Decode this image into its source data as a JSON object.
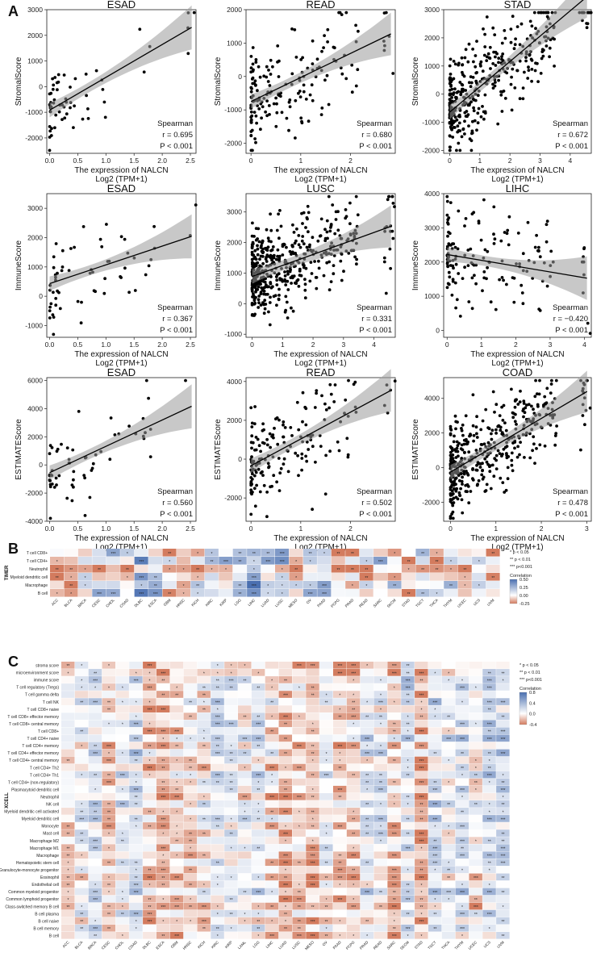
{
  "figure": {
    "panel_labels": [
      "A",
      "B",
      "C"
    ]
  },
  "chart_data": [
    {
      "type": "scatter",
      "title": "ESAD",
      "xlabel": "The expression of NALCN",
      "xlabel2": "Log2 (TPM+1)",
      "ylabel": "StromalScore",
      "xlim": [
        -0.05,
        2.6
      ],
      "ylim": [
        -2600,
        3000
      ],
      "xticks": [
        "0.0",
        "0.5",
        "1.0",
        "1.5",
        "2.0",
        "2.5"
      ],
      "xtick_values": [
        0,
        0.5,
        1,
        1.5,
        2,
        2.5
      ],
      "yticks": [
        "-2000",
        "-1000",
        "0",
        "1000",
        "2000",
        "3000"
      ],
      "ytick_values": [
        -2000,
        -1000,
        0,
        1000,
        2000,
        3000
      ],
      "stat_label": "Spearman",
      "r_text": "r = 0.695",
      "p_text": "P < 0.001",
      "fit": {
        "slope": 1280,
        "intercept": -920
      },
      "n_points": 60,
      "seed": 11
    },
    {
      "type": "scatter",
      "title": "READ",
      "xlabel": "The expression of NALCN",
      "xlabel2": "Log2 (TPM+1)",
      "ylabel": "StromalScore",
      "xlim": [
        -0.1,
        2.9
      ],
      "ylim": [
        -2300,
        2000
      ],
      "xticks": [
        "0",
        "1",
        "2"
      ],
      "xtick_values": [
        0,
        1,
        2
      ],
      "yticks": [
        "-2000",
        "-1000",
        "0",
        "1000",
        "2000"
      ],
      "ytick_values": [
        -2000,
        -1000,
        0,
        1000,
        2000
      ],
      "stat_label": "Spearman",
      "r_text": "r = 0.680",
      "p_text": "P < 0.001",
      "fit": {
        "slope": 720,
        "intercept": -750
      },
      "n_points": 170,
      "seed": 23
    },
    {
      "type": "scatter",
      "title": "STAD",
      "xlabel": "The expression of NALCN",
      "xlabel2": "Log2 (TPM+1)",
      "ylabel": "StromalScore",
      "xlim": [
        -0.2,
        4.7
      ],
      "ylim": [
        -2100,
        3000
      ],
      "xticks": [
        "0",
        "1",
        "2",
        "3",
        "4"
      ],
      "xtick_values": [
        0,
        1,
        2,
        3,
        4
      ],
      "yticks": [
        "-2000",
        "-1000",
        "0",
        "1000",
        "2000",
        "3000"
      ],
      "ytick_values": [
        -2000,
        -1000,
        0,
        1000,
        2000,
        3000
      ],
      "stat_label": "Spearman",
      "r_text": "r = 0.672",
      "p_text": "P < 0.001",
      "fit": {
        "slope": 900,
        "intercept": -640
      },
      "n_points": 380,
      "seed": 37
    },
    {
      "type": "scatter",
      "title": "ESAD",
      "xlabel": "The expression of NALCN",
      "xlabel2": "Log2 (TPM+1)",
      "ylabel": "ImmuneScore",
      "xlim": [
        -0.05,
        2.6
      ],
      "ylim": [
        -1400,
        3500
      ],
      "xticks": [
        "0.0",
        "0.5",
        "1.0",
        "1.5",
        "2.0",
        "2.5"
      ],
      "xtick_values": [
        0,
        0.5,
        1,
        1.5,
        2,
        2.5
      ],
      "yticks": [
        "-1000",
        "0",
        "1000",
        "2000",
        "3000"
      ],
      "ytick_values": [
        -1000,
        0,
        1000,
        2000,
        3000
      ],
      "stat_label": "Spearman",
      "r_text": "r = 0.367",
      "p_text": "P < 0.001",
      "fit": {
        "slope": 640,
        "intercept": 430
      },
      "n_points": 60,
      "seed": 41
    },
    {
      "type": "scatter",
      "title": "LUSC",
      "xlabel": "The expression of NALCN",
      "xlabel2": "Log2 (TPM+1)",
      "ylabel": "ImmuneScore",
      "xlim": [
        -0.2,
        4.7
      ],
      "ylim": [
        -1100,
        3600
      ],
      "xticks": [
        "0",
        "1",
        "2",
        "3",
        "4"
      ],
      "xtick_values": [
        0,
        1,
        2,
        3,
        4
      ],
      "yticks": [
        "-1000",
        "0",
        "1000",
        "2000",
        "3000"
      ],
      "ytick_values": [
        -1000,
        0,
        1000,
        2000,
        3000
      ],
      "stat_label": "Spearman",
      "r_text": "r = 0.331",
      "p_text": "P < 0.001",
      "fit": {
        "slope": 360,
        "intercept": 890
      },
      "n_points": 460,
      "seed": 53
    },
    {
      "type": "scatter",
      "title": "LIHC",
      "xlabel": "The expression of NALCN",
      "xlabel2": "Log2 (TPM+1)",
      "ylabel": "ImmuneScore",
      "xlim": [
        -0.1,
        4.2
      ],
      "ylim": [
        -200,
        4000
      ],
      "xticks": [
        "0",
        "1",
        "2",
        "3",
        "4"
      ],
      "xtick_values": [
        0,
        1,
        2,
        3,
        4
      ],
      "yticks": [
        "0",
        "1000",
        "2000",
        "3000",
        "4000"
      ],
      "ytick_values": [
        0,
        1000,
        2000,
        3000,
        4000
      ],
      "stat_label": "Spearman",
      "r_text": "r = −0.420",
      "p_text": "P < 0.001",
      "fit": {
        "slope": -170,
        "intercept": 2220
      },
      "n_points": 150,
      "seed": 67
    },
    {
      "type": "scatter",
      "title": "ESAD",
      "xlabel": "The expression of NALCN",
      "xlabel2": "Log2 (TPM+1)",
      "ylabel": "ESTIMATEScore",
      "xlim": [
        -0.05,
        2.6
      ],
      "ylim": [
        -4000,
        6200
      ],
      "xticks": [
        "0.0",
        "0.5",
        "1.0",
        "1.5",
        "2.0",
        "2.5"
      ],
      "xtick_values": [
        0,
        0.5,
        1,
        1.5,
        2,
        2.5
      ],
      "yticks": [
        "-4000",
        "-2000",
        "0",
        "2000",
        "4000",
        "6000"
      ],
      "ytick_values": [
        -4000,
        -2000,
        0,
        2000,
        4000,
        6000
      ],
      "stat_label": "Spearman",
      "r_text": "r = 0.560",
      "p_text": "P < 0.001",
      "fit": {
        "slope": 1870,
        "intercept": -550
      },
      "n_points": 60,
      "seed": 71
    },
    {
      "type": "scatter",
      "title": "READ",
      "xlabel": "The expression of NALCN",
      "xlabel2": "Log2 (TPM+1)",
      "ylabel": "ESTIMATEScore",
      "xlim": [
        -0.1,
        2.9
      ],
      "ylim": [
        -3200,
        4200
      ],
      "xticks": [
        "0",
        "1",
        "2"
      ],
      "xtick_values": [
        0,
        1,
        2
      ],
      "yticks": [
        "-2000",
        "0",
        "2000",
        "4000"
      ],
      "ytick_values": [
        -2000,
        0,
        2000,
        4000
      ],
      "stat_label": "Spearman",
      "r_text": "r = 0.502",
      "p_text": "P < 0.001",
      "fit": {
        "slope": 1380,
        "intercept": -340
      },
      "n_points": 170,
      "seed": 83
    },
    {
      "type": "scatter",
      "title": "COAD",
      "xlabel": "The expression of NALCN",
      "xlabel2": "Log2 (TPM+1)",
      "ylabel": "ESTIMATEScore",
      "xlim": [
        -0.15,
        3.1
      ],
      "ylim": [
        -3100,
        5200
      ],
      "xticks": [
        "0",
        "1",
        "2",
        "3"
      ],
      "xtick_values": [
        0,
        1,
        2,
        3
      ],
      "yticks": [
        "-2000",
        "0",
        "2000",
        "4000"
      ],
      "ytick_values": [
        -2000,
        0,
        2000,
        4000
      ],
      "stat_label": "Spearman",
      "r_text": "r = 0.478",
      "p_text": "P < 0.001",
      "fit": {
        "slope": 1550,
        "intercept": -260
      },
      "n_points": 420,
      "seed": 97
    },
    {
      "type": "heatmap",
      "group_label": "TIMER",
      "rows": [
        "T cell CD8+",
        "T cell CD4+",
        "Neutrophil",
        "Myeloid dendritic cell",
        "Macrophage",
        "B cell"
      ],
      "columns": [
        "ACC",
        "BLCA",
        "BRCA",
        "CESC",
        "CHOL",
        "COAD",
        "DLBC",
        "ESCA",
        "GBM",
        "HNSC",
        "KICH",
        "KIRC",
        "KIRP",
        "LGG",
        "LIHC",
        "LUAD",
        "LUSC",
        "MESO",
        "OV",
        "PAAD",
        "PCPG",
        "PRAD",
        "READ",
        "SARC",
        "SKCM",
        "STAD",
        "TGCT",
        "THCA",
        "THYM",
        "UCEC",
        "UCS",
        "UVM"
      ],
      "value_range": [
        -0.25,
        0.5
      ],
      "seed": 131,
      "legend": {
        "stars": [
          "* p < 0.05",
          "** p < 0.01",
          "*** p<0.001"
        ],
        "title": "Correlation",
        "ticks": [
          "0.50",
          "0.25",
          "0.00",
          "-0.25"
        ],
        "tick_values": [
          0.5,
          0.25,
          0,
          -0.25
        ]
      }
    },
    {
      "type": "heatmap",
      "group_label": "XCELL",
      "rows": [
        "stroma score",
        "microenvironment score",
        "immune score",
        "T cell regulatory (Tregs)",
        "T cell gamma delta",
        "T cell NK",
        "T cell CD8+ naive",
        "T cell CD8+ effector memory",
        "T cell CD8+ central memory",
        "T cell CD8+",
        "T cell CD4+ naive",
        "T cell CD4+ memory",
        "T cell CD4+ effector memory",
        "T cell CD4+ central memory",
        "T cell CD4+ Th2",
        "T cell CD4+ Th1",
        "T cell CD4+ (non-regulatory)",
        "Plasmacytoid dendritic cell",
        "Neutrophil",
        "NK cell",
        "Myeloid dendritic cell activated",
        "Myeloid dendritic cell",
        "Monocyte",
        "Mast cell",
        "Macrophage M2",
        "Macrophage M1",
        "Macrophage",
        "Hematopoietic stem cell",
        "Granulocyte-monocyte progenitor",
        "Eosinophil",
        "Endothelial cell",
        "Common myeloid progenitor",
        "Common lymphoid progenitor",
        "Class-switched memory B cell",
        "B cell plasma",
        "B cell naive",
        "B cell memory",
        "B cell"
      ],
      "columns": [
        "ACC",
        "BLCA",
        "BRCA",
        "CESC",
        "CHOL",
        "COAD",
        "DLBC",
        "ESCA",
        "GBM",
        "HNSC",
        "KICH",
        "KIRC",
        "KIRP",
        "LAML",
        "LGG",
        "LIHC",
        "LUAD",
        "LUSC",
        "MESO",
        "OV",
        "PAAD",
        "PCPG",
        "PRAD",
        "READ",
        "SARC",
        "SKCM",
        "STAD",
        "TGCT",
        "THCA",
        "THYM",
        "UCEC",
        "UCS",
        "UVM"
      ],
      "value_range": [
        -0.4,
        0.8
      ],
      "seed": 257,
      "legend": {
        "stars": [
          "* p < 0.05",
          "** p < 0.01",
          "*** p<0.001"
        ],
        "title": "Correlation",
        "ticks": [
          "0.8",
          "0.4",
          "0.0",
          "-0.4"
        ],
        "tick_values": [
          0.8,
          0.4,
          0,
          -0.4
        ]
      }
    }
  ]
}
